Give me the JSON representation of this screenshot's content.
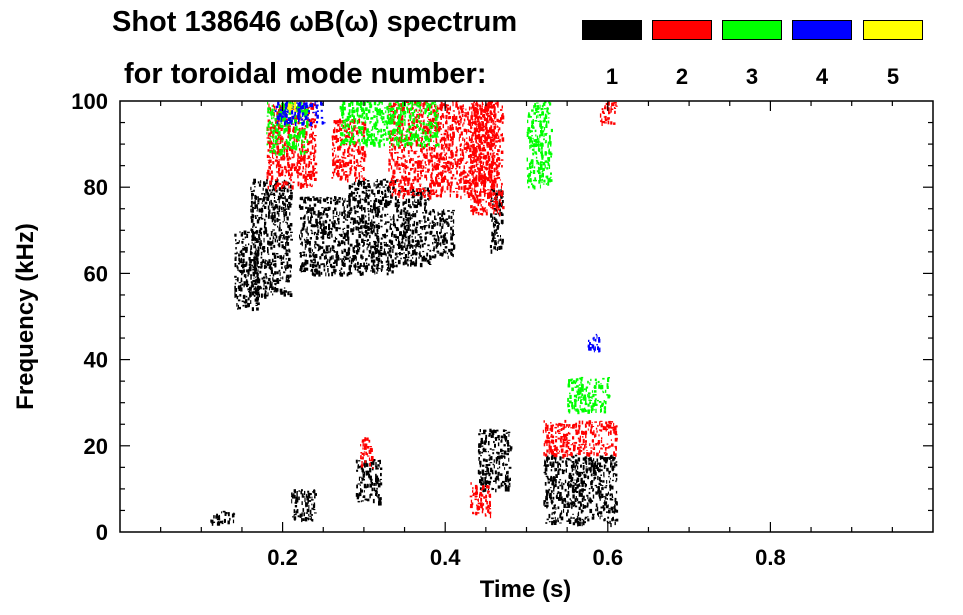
{
  "title": {
    "line1": "Shot 138646 ωB(ω) spectrum",
    "line2": "for toroidal mode number:"
  },
  "legend": [
    {
      "label": "1",
      "color": "#000000"
    },
    {
      "label": "2",
      "color": "#ff0000"
    },
    {
      "label": "3",
      "color": "#00ff00"
    },
    {
      "label": "4",
      "color": "#0000ff"
    },
    {
      "label": "5",
      "color": "#ffff00"
    }
  ],
  "chart_data": {
    "type": "heatmap",
    "title": "Shot 138646 ωB(ω) spectrum",
    "xlabel": "Time (s)",
    "ylabel": "Frequency (kHz)",
    "xlim": [
      0.0,
      1.0
    ],
    "ylim": [
      0,
      100
    ],
    "xticks": [
      "0.2",
      "0.4",
      "0.6",
      "0.8"
    ],
    "xtick_values": [
      0.2,
      0.4,
      0.6,
      0.8
    ],
    "yticks": [
      "0",
      "20",
      "40",
      "60",
      "80",
      "100"
    ],
    "ytick_values": [
      0,
      20,
      40,
      60,
      80,
      100
    ],
    "grid": false,
    "legend_position": "top-right",
    "series": [
      {
        "name": "1",
        "color": "#000000",
        "regions": [
          {
            "t": [
              0.14,
              0.17
            ],
            "f": [
              52,
              70
            ]
          },
          {
            "t": [
              0.16,
              0.21
            ],
            "f": [
              55,
              82
            ]
          },
          {
            "t": [
              0.22,
              0.28
            ],
            "f": [
              60,
              78
            ]
          },
          {
            "t": [
              0.28,
              0.34
            ],
            "f": [
              60,
              82
            ]
          },
          {
            "t": [
              0.34,
              0.38
            ],
            "f": [
              62,
              80
            ]
          },
          {
            "t": [
              0.38,
              0.41
            ],
            "f": [
              64,
              75
            ]
          },
          {
            "t": [
              0.455,
              0.47
            ],
            "f": [
              65,
              80
            ]
          },
          {
            "t": [
              0.29,
              0.32
            ],
            "f": [
              7,
              17
            ]
          },
          {
            "t": [
              0.44,
              0.48
            ],
            "f": [
              10,
              24
            ]
          },
          {
            "t": [
              0.52,
              0.61
            ],
            "f": [
              2,
              18
            ]
          },
          {
            "t": [
              0.11,
              0.14
            ],
            "f": [
              2,
              5
            ]
          },
          {
            "t": [
              0.21,
              0.24
            ],
            "f": [
              3,
              10
            ]
          }
        ]
      },
      {
        "name": "2",
        "color": "#ff0000",
        "regions": [
          {
            "t": [
              0.18,
              0.24
            ],
            "f": [
              80,
              100
            ]
          },
          {
            "t": [
              0.26,
              0.3
            ],
            "f": [
              82,
              96
            ]
          },
          {
            "t": [
              0.33,
              0.46
            ],
            "f": [
              78,
              100
            ]
          },
          {
            "t": [
              0.43,
              0.47
            ],
            "f": [
              74,
              100
            ]
          },
          {
            "t": [
              0.295,
              0.31
            ],
            "f": [
              15,
              22
            ]
          },
          {
            "t": [
              0.43,
              0.455
            ],
            "f": [
              4,
              12
            ]
          },
          {
            "t": [
              0.52,
              0.61
            ],
            "f": [
              18,
              26
            ]
          },
          {
            "t": [
              0.59,
              0.61
            ],
            "f": [
              95,
              100
            ]
          }
        ]
      },
      {
        "name": "3",
        "color": "#00ff00",
        "regions": [
          {
            "t": [
              0.18,
              0.23
            ],
            "f": [
              88,
              100
            ]
          },
          {
            "t": [
              0.27,
              0.39
            ],
            "f": [
              90,
              100
            ]
          },
          {
            "t": [
              0.5,
              0.53
            ],
            "f": [
              80,
              100
            ]
          },
          {
            "t": [
              0.55,
              0.6
            ],
            "f": [
              28,
              36
            ]
          }
        ]
      },
      {
        "name": "4",
        "color": "#0000ff",
        "regions": [
          {
            "t": [
              0.19,
              0.25
            ],
            "f": [
              95,
              100
            ]
          },
          {
            "t": [
              0.575,
              0.59
            ],
            "f": [
              42,
              46
            ]
          }
        ]
      },
      {
        "name": "5",
        "color": "#ffff00",
        "regions": [
          {
            "t": [
              0.205,
              0.215
            ],
            "f": [
              98,
              100
            ]
          }
        ]
      }
    ]
  }
}
